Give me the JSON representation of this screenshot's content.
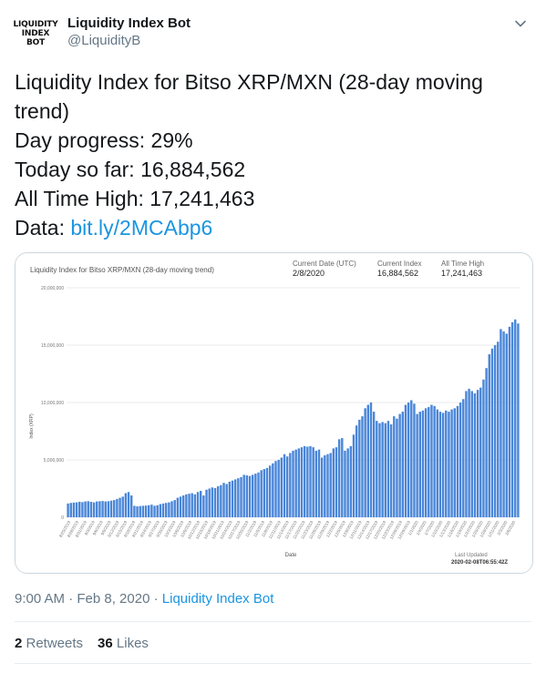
{
  "author": {
    "avatar_lines": [
      "LIQUIDITY",
      "INDEX",
      "BOT"
    ],
    "display_name": "Liquidity Index Bot",
    "handle": "@LiquidityB"
  },
  "tweet": {
    "line1": "Liquidity Index for Bitso XRP/MXN (28-day moving trend)",
    "line2": "Day progress: 29%",
    "line3": "Today so far: 16,884,562",
    "line4": "All Time High: 17,241,463",
    "data_label": "Data: ",
    "data_link": "bit.ly/2MCAbp6"
  },
  "card": {
    "stats": [
      {
        "label": "Current Date (UTC)",
        "value": "2/8/2020"
      },
      {
        "label": "Current Index",
        "value": "16,884,562"
      },
      {
        "label": "All Time High",
        "value": "17,241,463"
      }
    ],
    "last_updated_label": "Last Updated",
    "last_updated_value": "2020-02-08T06:55:42Z"
  },
  "chart_data": {
    "type": "bar",
    "title": "Liquidity Index for Bitso XRP/MXN (28-day moving trend)",
    "xlabel": "Date",
    "ylabel": "Index (XRP)",
    "ylim": [
      0,
      20000000
    ],
    "yticks": [
      0,
      5000000,
      10000000,
      15000000,
      20000000
    ],
    "ytick_labels": [
      "0",
      "5,000,000",
      "10,000,000",
      "15,000,000",
      "20,000,000"
    ],
    "bar_color": "#4a86d8",
    "grid": true,
    "x_tick_labels": [
      "8/25/2019",
      "8/28/2019",
      "8/31/2019",
      "9/3/2019",
      "9/6/2019",
      "9/9/2019",
      "9/12/2019",
      "9/15/2019",
      "9/18/2019",
      "9/21/2019",
      "9/24/2019",
      "9/27/2019",
      "9/30/2019",
      "10/3/2019",
      "10/6/2019",
      "10/9/2019",
      "10/12/2019",
      "10/15/2019",
      "10/18/2019",
      "10/21/2019",
      "10/24/2019",
      "10/27/2019",
      "10/30/2019",
      "11/2/2019",
      "11/5/2019",
      "11/8/2019",
      "11/11/2019",
      "11/14/2019",
      "11/17/2019",
      "11/20/2019",
      "11/23/2019",
      "11/26/2019",
      "11/29/2019",
      "12/2/2019",
      "12/5/2019",
      "12/8/2019",
      "12/11/2019",
      "12/14/2019",
      "12/17/2019",
      "12/20/2019",
      "12/23/2019",
      "12/26/2019",
      "12/29/2019",
      "1/1/2020",
      "1/4/2020",
      "1/7/2020",
      "1/10/2020",
      "1/13/2020",
      "1/16/2020",
      "1/19/2020",
      "1/22/2020",
      "1/25/2020",
      "1/28/2020",
      "1/31/2020",
      "2/3/2020",
      "2/6/2020"
    ],
    "values": [
      1200000,
      1250000,
      1280000,
      1300000,
      1350000,
      1320000,
      1380000,
      1400000,
      1350000,
      1300000,
      1380000,
      1400000,
      1420000,
      1380000,
      1400000,
      1450000,
      1500000,
      1600000,
      1700000,
      1800000,
      2100000,
      2200000,
      1900000,
      1000000,
      950000,
      980000,
      1000000,
      1020000,
      1050000,
      1100000,
      1000000,
      1050000,
      1150000,
      1200000,
      1250000,
      1300000,
      1400000,
      1500000,
      1700000,
      1800000,
      1900000,
      2000000,
      2050000,
      2100000,
      2000000,
      2200000,
      2300000,
      1900000,
      2400000,
      2500000,
      2600000,
      2550000,
      2700000,
      2800000,
      3000000,
      2900000,
      3100000,
      3200000,
      3300000,
      3400000,
      3500000,
      3700000,
      3650000,
      3600000,
      3700000,
      3800000,
      3900000,
      4100000,
      4200000,
      4300000,
      4500000,
      4700000,
      4900000,
      5000000,
      5200000,
      5500000,
      5300000,
      5600000,
      5800000,
      5900000,
      6000000,
      6100000,
      6200000,
      6150000,
      6200000,
      6100000,
      5800000,
      5900000,
      5200000,
      5400000,
      5500000,
      5600000,
      6000000,
      6100000,
      6800000,
      6900000,
      5800000,
      6000000,
      6200000,
      7200000,
      8000000,
      8500000,
      8800000,
      9500000,
      9800000,
      10000000,
      9200000,
      8400000,
      8200000,
      8300000,
      8200000,
      8400000,
      8100000,
      8800000,
      8600000,
      9000000,
      9200000,
      9800000,
      10000000,
      10200000,
      9900000,
      9000000,
      9200000,
      9300000,
      9500000,
      9600000,
      9800000,
      9700000,
      9400000,
      9200000,
      9100000,
      9300000,
      9200000,
      9400000,
      9500000,
      9700000,
      10000000,
      10300000,
      11000000,
      11200000,
      11000000,
      10800000,
      11100000,
      11300000,
      12000000,
      13000000,
      14200000,
      14700000,
      15000000,
      15300000,
      16400000,
      16200000,
      16000000,
      16600000,
      17000000,
      17241463,
      16884562
    ]
  }
}
